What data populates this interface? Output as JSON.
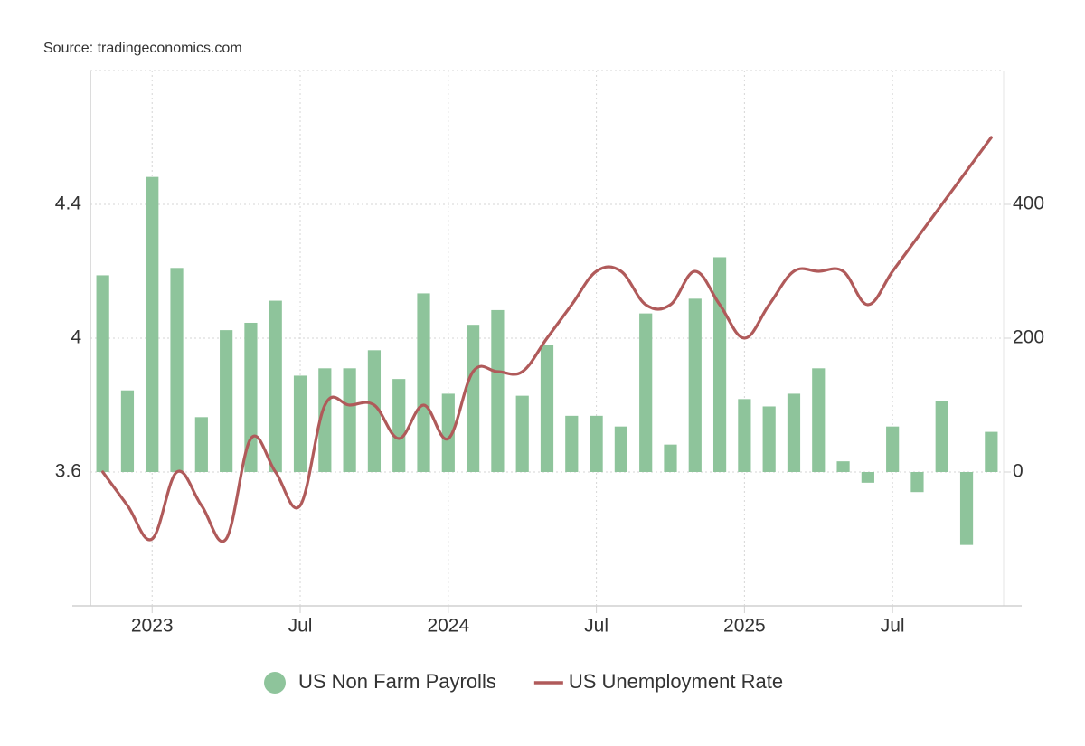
{
  "chart_data": {
    "type": "bar",
    "source": "Source: tradingeconomics.com",
    "categories": [
      null,
      null,
      "2023",
      null,
      null,
      null,
      null,
      null,
      "Jul",
      null,
      null,
      null,
      null,
      null,
      "2024",
      null,
      null,
      null,
      null,
      null,
      "Jul",
      null,
      null,
      null,
      null,
      null,
      "2025",
      null,
      null,
      null,
      null,
      null,
      "Jul",
      null,
      null,
      null,
      null
    ],
    "series": [
      {
        "name": "US Non Farm Payrolls",
        "type": "bar",
        "axis": "y2",
        "color": "#8ec49b",
        "values": [
          294,
          122,
          441,
          305,
          82,
          212,
          223,
          256,
          144,
          155,
          155,
          182,
          139,
          267,
          117,
          220,
          242,
          114,
          190,
          84,
          84,
          68,
          237,
          41,
          259,
          321,
          109,
          98,
          117,
          155,
          16,
          -16,
          68,
          -30,
          106,
          -109,
          60
        ]
      },
      {
        "name": "US Unemployment Rate",
        "type": "line",
        "axis": "y",
        "color": "#b05a5a",
        "values": [
          3.6,
          3.5,
          3.4,
          3.6,
          3.5,
          3.4,
          3.7,
          3.6,
          3.5,
          3.8,
          3.8,
          3.8,
          3.7,
          3.8,
          3.7,
          3.9,
          3.9,
          3.9,
          4.0,
          4.1,
          4.2,
          4.2,
          4.1,
          4.1,
          4.2,
          4.1,
          4.0,
          4.1,
          4.2,
          4.2,
          4.2,
          4.1,
          4.2,
          4.3,
          4.4,
          4.5,
          4.6
        ]
      }
    ],
    "ylim": [
      3.2,
      4.8
    ],
    "yticks": [
      3.6,
      4,
      4.4
    ],
    "y2lim": [
      -200,
      600
    ],
    "y2ticks": [
      0,
      200,
      400
    ],
    "grid": true
  }
}
